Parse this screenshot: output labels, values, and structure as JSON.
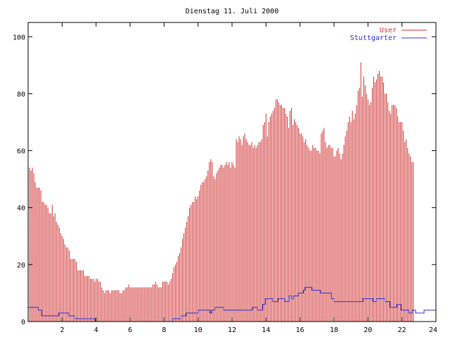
{
  "chart_data": {
    "type": "bar",
    "title": "Dienstag 11. Juli 2000",
    "xlabel": "",
    "ylabel": "",
    "xlim": [
      0,
      24
    ],
    "ylim": [
      0,
      105
    ],
    "grid": false,
    "legend_position": "top-right",
    "x_ticks": [
      2,
      4,
      6,
      8,
      10,
      12,
      14,
      16,
      18,
      20,
      22,
      24
    ],
    "x_tick_labels": [
      "2",
      "4",
      "6",
      "8",
      "10",
      "12",
      "14",
      "16",
      "18",
      "20",
      "22",
      "24"
    ],
    "y_ticks": [
      0,
      20,
      40,
      60,
      80,
      100
    ],
    "y_tick_labels": [
      "0",
      "20",
      "40",
      "60",
      "80",
      "100"
    ],
    "series": [
      {
        "name": "User",
        "style": "impulses",
        "color": "#d03030",
        "interval_minutes": 5,
        "values": [
          60,
          54,
          53,
          54,
          52,
          49,
          47,
          47,
          47,
          46,
          42,
          42,
          41,
          41,
          40,
          38,
          38,
          41,
          37,
          38,
          35,
          34,
          33,
          31,
          30,
          29,
          27,
          26,
          26,
          25,
          22,
          22,
          22,
          22,
          21,
          18,
          18,
          18,
          18,
          18,
          16,
          16,
          16,
          16,
          15,
          15,
          15,
          14,
          15,
          15,
          14,
          14,
          12,
          11,
          10,
          11,
          11,
          11,
          10,
          11,
          11,
          11,
          11,
          11,
          11,
          10,
          10,
          11,
          11,
          12,
          12,
          13,
          12,
          12,
          12,
          12,
          12,
          12,
          12,
          12,
          12,
          12,
          12,
          12,
          12,
          12,
          12,
          12,
          13,
          13,
          14,
          13,
          12,
          12,
          12,
          14,
          14,
          14,
          14,
          13,
          14,
          15,
          17,
          19,
          20,
          21,
          23,
          24,
          26,
          29,
          31,
          33,
          35,
          37,
          40,
          41,
          42,
          42,
          44,
          43,
          44,
          46,
          48,
          49,
          49,
          50,
          51,
          53,
          56,
          57,
          56,
          51,
          50,
          52,
          53,
          54,
          55,
          55,
          54,
          55,
          56,
          55,
          56,
          54,
          56,
          55,
          54,
          64,
          63,
          65,
          64,
          62,
          65,
          66,
          64,
          63,
          62,
          62,
          63,
          61,
          62,
          61,
          62,
          63,
          63,
          64,
          69,
          70,
          73,
          65,
          70,
          72,
          73,
          74,
          75,
          78,
          78,
          77,
          76,
          76,
          75,
          75,
          73,
          72,
          68,
          74,
          75,
          69,
          71,
          70,
          69,
          68,
          66,
          66,
          65,
          63,
          64,
          62,
          61,
          60,
          60,
          62,
          61,
          61,
          60,
          60,
          59,
          66,
          67,
          68,
          63,
          61,
          62,
          62,
          61,
          61,
          58,
          58,
          60,
          61,
          59,
          57,
          59,
          62,
          65,
          67,
          70,
          72,
          70,
          74,
          71,
          73,
          76,
          81,
          82,
          91,
          79,
          86,
          83,
          80,
          78,
          76,
          77,
          82,
          86,
          84,
          85,
          87,
          88,
          86,
          86,
          84,
          80,
          80,
          77,
          74,
          73,
          76,
          76,
          76,
          75,
          72,
          70,
          70,
          70,
          67,
          63,
          64,
          61,
          59,
          58,
          56,
          56
        ]
      },
      {
        "name": "Stuttgarter",
        "style": "steps",
        "color": "#3030d0",
        "points": [
          [
            0,
            5
          ],
          [
            0.6,
            4
          ],
          [
            0.8,
            2
          ],
          [
            1.8,
            3
          ],
          [
            2.4,
            2
          ],
          [
            2.75,
            1
          ],
          [
            3.95,
            0
          ],
          [
            8.5,
            1
          ],
          [
            9.0,
            2
          ],
          [
            9.3,
            3
          ],
          [
            10.0,
            4
          ],
          [
            10.7,
            3
          ],
          [
            10.8,
            4
          ],
          [
            11.0,
            5
          ],
          [
            11.5,
            4
          ],
          [
            13.2,
            5
          ],
          [
            13.5,
            4
          ],
          [
            13.8,
            6
          ],
          [
            13.95,
            8
          ],
          [
            14.4,
            7
          ],
          [
            14.7,
            8
          ],
          [
            15.1,
            7
          ],
          [
            15.35,
            9
          ],
          [
            15.5,
            8
          ],
          [
            15.6,
            9
          ],
          [
            15.9,
            10
          ],
          [
            16.2,
            11
          ],
          [
            16.3,
            12
          ],
          [
            16.7,
            11
          ],
          [
            17.2,
            10
          ],
          [
            17.85,
            8
          ],
          [
            18.0,
            7
          ],
          [
            19.7,
            8
          ],
          [
            20.3,
            7
          ],
          [
            20.5,
            8
          ],
          [
            21.0,
            7
          ],
          [
            21.3,
            5
          ],
          [
            21.7,
            6
          ],
          [
            21.95,
            4
          ],
          [
            22.4,
            3
          ],
          [
            22.6,
            4
          ],
          [
            22.8,
            3
          ],
          [
            23.3,
            4
          ],
          [
            24,
            4
          ]
        ]
      }
    ]
  }
}
